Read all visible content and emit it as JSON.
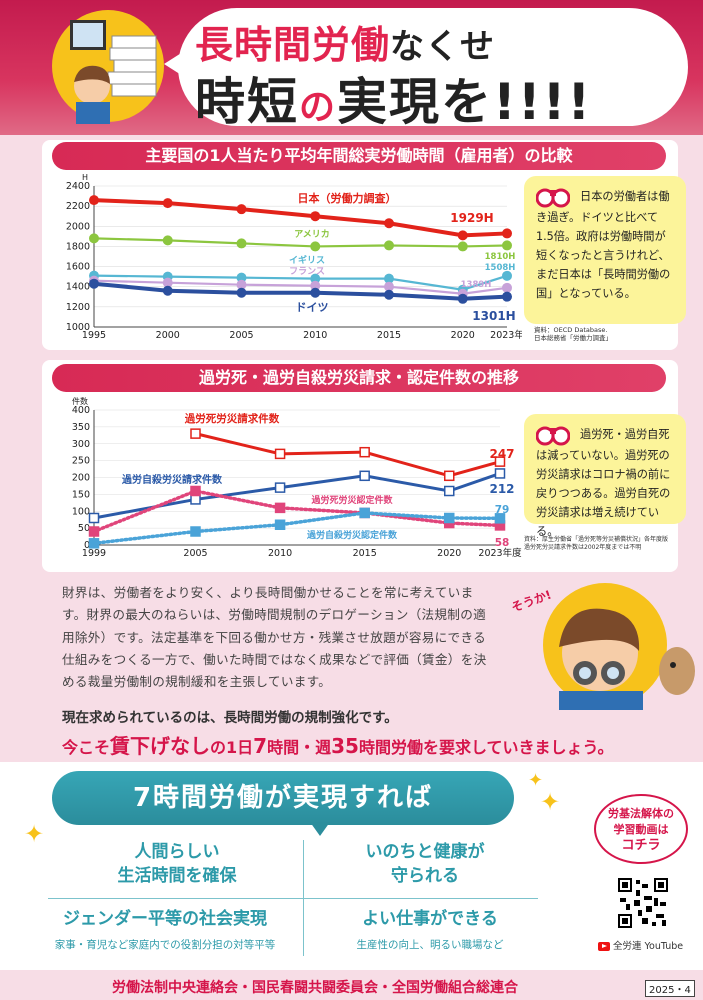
{
  "header": {
    "title_line1_red": "長時間労働",
    "title_line1_black": "なくせ",
    "title_line2_a": "時短",
    "title_line2_no": "の",
    "title_line2_b": "実現を!!!!"
  },
  "chart1": {
    "title": "主要国の1人当たり平均年間総実労働時間（雇用者）の比較",
    "note_lines": [
      "日本の労働者は働き過ぎ。ドイツと比べて1.5倍。政府は労働時間が短くなったと言うけれど、まだ日本は「長時間労働の国」となっている。"
    ],
    "source": [
      "資料：OECD Database.",
      "日本総務省「労働力調査」"
    ]
  },
  "chart2": {
    "title": "過労死・過労自殺労災請求・認定件数の推移",
    "note_lines": [
      "過労死・過労自死は減っていない。過労死の労災請求はコロナ禍の前に戻りつつある。過労自死の労災請求は増え続けている。"
    ],
    "source": [
      "資料：厚生労働省「過労死等労災補償状況」各年度版",
      "過労死労災請求件数は2002年度までは不明"
    ]
  },
  "chart_data": [
    {
      "type": "line",
      "y_unit_label": "H",
      "x": [
        1995,
        2000,
        2005,
        2010,
        2015,
        2020,
        2023
      ],
      "x_tick_labels": [
        "1995",
        "2000",
        "2005",
        "2010",
        "2015",
        "2020",
        "2023年"
      ],
      "ylim": [
        1000,
        2400
      ],
      "y_ticks": [
        1000,
        1200,
        1400,
        1600,
        1800,
        2000,
        2200,
        2400
      ],
      "series": [
        {
          "name": "日本（労働力調査）",
          "color": "#e2231a",
          "values": [
            2260,
            2230,
            2170,
            2100,
            2030,
            1910,
            1929
          ],
          "end_label": "1929H"
        },
        {
          "name": "アメリカ",
          "color": "#8cc63f",
          "values": [
            1880,
            1860,
            1830,
            1800,
            1810,
            1800,
            1810
          ],
          "end_label": "1810H"
        },
        {
          "name": "イギリス",
          "color": "#56b7d3",
          "values": [
            1510,
            1500,
            1490,
            1480,
            1480,
            1370,
            1508
          ],
          "end_label": "1508H"
        },
        {
          "name": "フランス",
          "color": "#c7a2d9",
          "values": [
            1460,
            1440,
            1420,
            1410,
            1400,
            1330,
            1389
          ],
          "end_label": "1389H"
        },
        {
          "name": "ドイツ",
          "color": "#2b4f9e",
          "values": [
            1430,
            1360,
            1340,
            1340,
            1320,
            1280,
            1301
          ],
          "end_label": "1301H"
        }
      ]
    },
    {
      "type": "line",
      "y_unit_label": "件数",
      "x": [
        1999,
        2005,
        2010,
        2015,
        2020,
        2023
      ],
      "x_tick_labels": [
        "1999",
        "2005",
        "2010",
        "2015",
        "2020",
        "2023年度"
      ],
      "ylim": [
        0,
        400
      ],
      "y_ticks": [
        0,
        50,
        100,
        150,
        200,
        250,
        300,
        350,
        400
      ],
      "series": [
        {
          "name": "過労死労災請求件数",
          "color": "#e2231a",
          "style": "solid",
          "x": [
            2005,
            2010,
            2015,
            2020,
            2023
          ],
          "values": [
            330,
            270,
            275,
            205,
            247
          ],
          "end_label": "247"
        },
        {
          "name": "過労自殺労災請求件数",
          "color": "#2b5aa8",
          "style": "solid",
          "x": [
            1999,
            2005,
            2010,
            2015,
            2020,
            2023
          ],
          "values": [
            80,
            135,
            170,
            205,
            160,
            212
          ],
          "end_label": "212"
        },
        {
          "name": "過労死労災認定件数",
          "color": "#e0457b",
          "style": "dotted",
          "x": [
            1999,
            2005,
            2010,
            2015,
            2020,
            2023
          ],
          "values": [
            40,
            160,
            110,
            95,
            65,
            58
          ],
          "end_label": "58"
        },
        {
          "name": "過労自殺労災認定件数",
          "color": "#4aa3d8",
          "style": "dotted",
          "x": [
            1999,
            2005,
            2010,
            2015,
            2020,
            2023
          ],
          "values": [
            5,
            40,
            60,
            95,
            80,
            79
          ],
          "end_label": "79"
        }
      ]
    }
  ],
  "body": {
    "para": "財界は、労働者をより安く、より長時間働かせることを常に考えています。財界の最大のねらいは、労働時間規制のデロゲーション（法規制の適用除外）です。法定基準を下回る働かせ方・残業させ放題が容易にできる仕組みをつくる一方で、働いた時間ではなく成果などで評価（賃金）を決める裁量労働制の規制緩和を主張しています。",
    "emph1": "現在求められているのは、長時間労働の規制強化です。",
    "emph2_a": "今こそ",
    "emph2_b": "賃下げなし",
    "emph2_c": "の1日",
    "emph2_d": "7",
    "emph2_e": "時間・週",
    "emph2_f": "35",
    "emph2_g": "時間労働を要求していきましょう。",
    "sou_ka": "そうか!"
  },
  "bottom": {
    "banner": "7時間労働が実現すれば",
    "b1_l1": "人間らしい",
    "b1_l2": "生活時間を確保",
    "b2_l1": "いのちと健康が",
    "b2_l2": "守られる",
    "b3_title": "ジェンダー平等の社会実現",
    "b3_sub": "家事・育児など家庭内での役割分担の対等平等",
    "b4_title": "よい仕事ができる",
    "b4_sub": "生産性の向上、明るい職場など",
    "video_l1": "労基法解体の",
    "video_l2": "学習動画は",
    "video_l3": "コチラ",
    "youtube": "全労連 YouTube"
  },
  "footer": {
    "orgs": "労働法制中央連絡会・国民春闘共闘委員会・全国労働組合総連合",
    "date": "2025・4"
  },
  "colors": {
    "accent": "#d5154a",
    "teal": "#2d9aa9",
    "note": "#fcf49a"
  }
}
